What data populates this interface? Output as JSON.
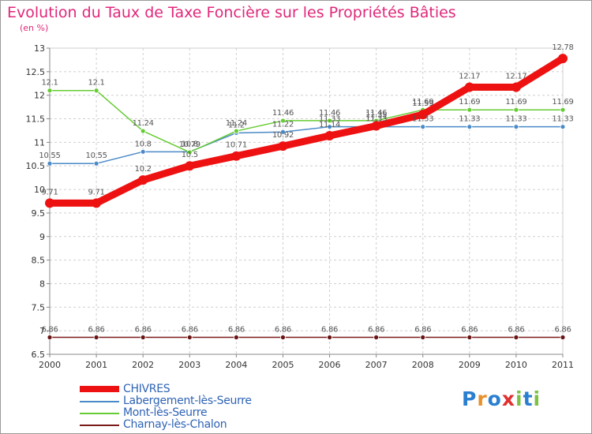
{
  "chart_data": {
    "type": "line",
    "title": "Evolution du Taux de Taxe Foncière sur les Propriétés Bâties",
    "subtitle": "(en %)",
    "x": [
      "2000",
      "2001",
      "2002",
      "2003",
      "2004",
      "2005",
      "2006",
      "2007",
      "2008",
      "2009",
      "2010",
      "2011"
    ],
    "y_ticks": [
      "6.5",
      "7",
      "7.5",
      "8",
      "8.5",
      "9",
      "9.5",
      "10",
      "10.5",
      "11",
      "11.5",
      "12",
      "12.5",
      "13"
    ],
    "ylim": [
      6.5,
      13
    ],
    "grid": true,
    "legend_position": "bottom-left",
    "series": [
      {
        "name": "CHIVRES",
        "color": "#ee1111",
        "values": [
          9.71,
          9.71,
          10.2,
          10.5,
          10.71,
          10.92,
          11.14,
          11.35,
          11.59,
          12.17,
          12.17,
          12.78
        ],
        "labels": [
          "9.71",
          "9.71",
          "10.2",
          "10.5",
          "10.71",
          "10.92",
          "11.14",
          "11.35",
          "11.59",
          "12.17",
          "12.17",
          "12.78"
        ]
      },
      {
        "name": "Labergement-lès-Seurre",
        "color": "#4a8ac8",
        "values": [
          10.55,
          10.55,
          10.8,
          10.8,
          11.2,
          11.22,
          11.33,
          11.33,
          11.33,
          11.33,
          11.33,
          11.33
        ],
        "labels": [
          "10.55",
          "10.55",
          "10.8",
          "10.8",
          "11.2",
          "11.22",
          "11.33",
          "11.33",
          "11.33",
          "11.33",
          "11.33",
          "11.33"
        ]
      },
      {
        "name": "Mont-lès-Seurre",
        "color": "#66cc33",
        "values": [
          12.1,
          12.1,
          11.24,
          10.79,
          11.24,
          11.46,
          11.46,
          11.46,
          11.69,
          11.69,
          11.69,
          11.69
        ],
        "labels": [
          "12.1",
          "12.1",
          "11.24",
          "10.79",
          "11.24",
          "11.46",
          "11.46",
          "11.46",
          "11.69",
          "11.69",
          "11.69",
          "11.69"
        ]
      },
      {
        "name": "Charnay-lès-Chalon",
        "color": "#7a1a1a",
        "values": [
          6.86,
          6.86,
          6.86,
          6.86,
          6.86,
          6.86,
          6.86,
          6.86,
          6.86,
          6.86,
          6.86,
          6.86
        ],
        "labels": [
          "6.86",
          "6.86",
          "6.86",
          "6.86",
          "6.86",
          "6.86",
          "6.86",
          "6.86",
          "6.86",
          "6.86",
          "6.86",
          "6.86"
        ]
      }
    ]
  },
  "logo": {
    "letters": [
      "P",
      "r",
      "o",
      "x",
      "i",
      "t",
      "i"
    ],
    "colors": [
      "#2a7fd0",
      "#e8902a",
      "#2a7fd0",
      "#e03030",
      "#7cc242",
      "#2a7fd0",
      "#7cc242"
    ]
  }
}
